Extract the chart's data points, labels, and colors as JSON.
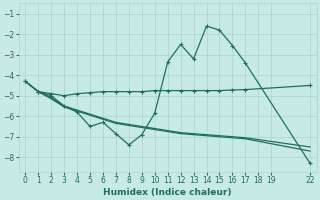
{
  "bg_color": "#c8eae4",
  "grid_color": "#a8d4cc",
  "line_color": "#1e6e62",
  "xlabel": "Humidex (Indice chaleur)",
  "xlim": [
    -0.5,
    22.5
  ],
  "ylim": [
    -8.7,
    -0.5
  ],
  "yticks": [
    -8,
    -7,
    -6,
    -5,
    -4,
    -3,
    -2,
    -1
  ],
  "xticks": [
    0,
    1,
    2,
    3,
    4,
    5,
    6,
    7,
    8,
    9,
    10,
    11,
    12,
    13,
    14,
    15,
    16,
    17,
    18,
    19,
    22
  ],
  "lines": [
    {
      "x": [
        0,
        1,
        2,
        3,
        4,
        5,
        6,
        7,
        8,
        9,
        10,
        11,
        12,
        13,
        14,
        15,
        16,
        17,
        22
      ],
      "y": [
        -4.3,
        -4.8,
        -4.9,
        -5.0,
        -4.9,
        -4.85,
        -4.8,
        -4.8,
        -4.8,
        -4.8,
        -4.75,
        -4.75,
        -4.75,
        -4.75,
        -4.75,
        -4.75,
        -4.72,
        -4.7,
        -4.5
      ],
      "marker": true
    },
    {
      "x": [
        0,
        1,
        2,
        3,
        4,
        5,
        6,
        7,
        8,
        9,
        10,
        11,
        12,
        13,
        14,
        15,
        16,
        17,
        22
      ],
      "y": [
        -4.3,
        -4.8,
        -5.1,
        -5.5,
        -5.7,
        -5.9,
        -6.1,
        -6.3,
        -6.4,
        -6.5,
        -6.6,
        -6.7,
        -6.8,
        -6.85,
        -6.9,
        -6.95,
        -7.0,
        -7.05,
        -7.5
      ],
      "marker": false
    },
    {
      "x": [
        0,
        1,
        2,
        3,
        4,
        5,
        6,
        7,
        8,
        9,
        10,
        11,
        12,
        13,
        14,
        15,
        16,
        17,
        22
      ],
      "y": [
        -4.3,
        -4.8,
        -5.15,
        -5.55,
        -5.75,
        -5.95,
        -6.15,
        -6.35,
        -6.45,
        -6.55,
        -6.65,
        -6.75,
        -6.85,
        -6.9,
        -6.95,
        -7.0,
        -7.05,
        -7.1,
        -7.7
      ],
      "marker": false
    },
    {
      "x": [
        0,
        1,
        2,
        3,
        4,
        5,
        6,
        7,
        8,
        9,
        10,
        11,
        12,
        13,
        14,
        15,
        16,
        17,
        22
      ],
      "y": [
        -4.3,
        -4.8,
        -5.0,
        -5.5,
        -5.8,
        -6.5,
        -6.3,
        -6.85,
        -7.4,
        -6.9,
        -5.85,
        -3.35,
        -2.5,
        -3.2,
        -1.6,
        -1.8,
        -2.55,
        -3.4,
        -8.3
      ],
      "marker": true
    }
  ]
}
